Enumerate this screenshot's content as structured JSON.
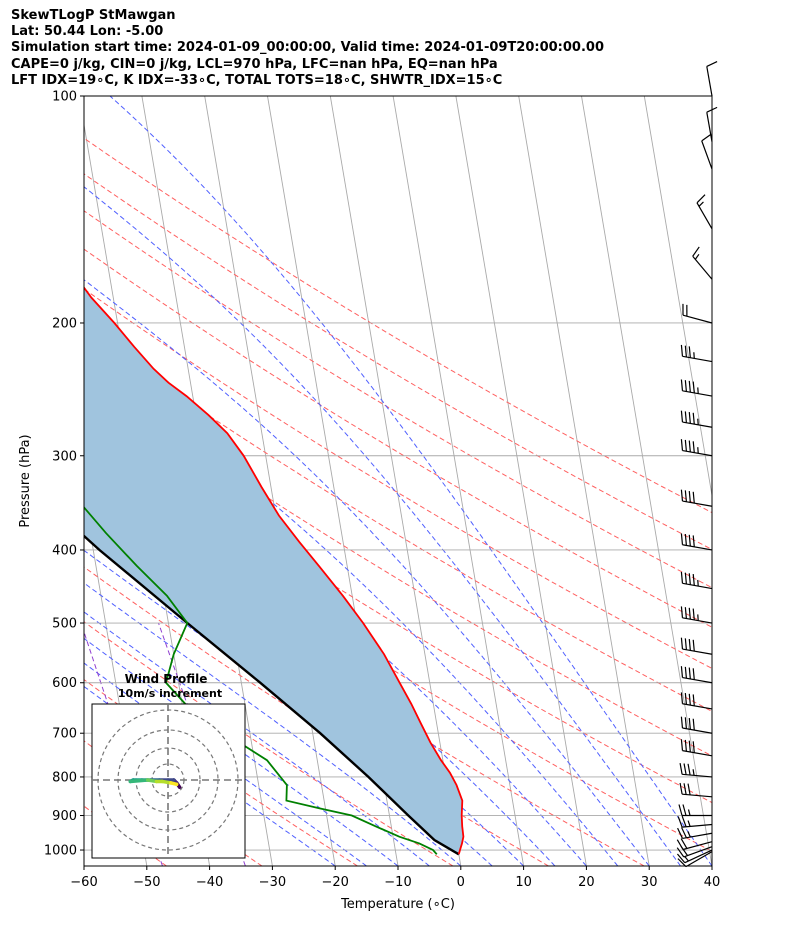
{
  "header": {
    "line1": "SkewTLogP StMawgan",
    "line2": "Lat: 50.44   Lon: -5.00",
    "line3": "Simulation start time: 2024-01-09_00:00:00, Valid time: 2024-01-09T20:00:00.00",
    "line4": "CAPE=0 j/kg, CIN=0 j/kg, LCL=970 hPa, LFC=nan hPa, EQ=nan hPa",
    "line5": "LFT IDX=19∘C, K IDX=-33∘C, TOTAL TOTS=18∘C, SHWTR_IDX=15∘C"
  },
  "axes": {
    "xlabel": "Temperature (∘C)",
    "ylabel": "Pressure (hPa)",
    "x_ticks": [
      "−60",
      "−50",
      "−40",
      "−30",
      "−20",
      "−10",
      "0",
      "10",
      "20",
      "30",
      "40"
    ],
    "y_ticks": [
      "100",
      "200",
      "300",
      "400",
      "500",
      "600",
      "700",
      "800",
      "900",
      "1000"
    ]
  },
  "inset": {
    "title_line1": "Wind Profile",
    "title_line2": "10m/s increment"
  },
  "colors": {
    "temperature": "#ff0000",
    "dewpoint": "#008000",
    "parcel": "#000000",
    "cape_fill": "#a0c4de",
    "dry_adiabat": "#ff6060",
    "moist_adiabat": "#5060ff",
    "mixing_ratio": "#9040d0",
    "isotherm": "#aaaaaa"
  },
  "chart_data": {
    "type": "skewt",
    "x_range": [
      -60,
      40
    ],
    "p_range": [
      1050,
      100
    ],
    "temperature": [
      [
        1013,
        0
      ],
      [
        1000,
        0.3
      ],
      [
        980,
        0.8
      ],
      [
        960,
        1.2
      ],
      [
        930,
        1.3
      ],
      [
        900,
        1.5
      ],
      [
        860,
        2.0
      ],
      [
        820,
        1.5
      ],
      [
        790,
        0.8
      ],
      [
        760,
        -0.3
      ],
      [
        720,
        -1.5
      ],
      [
        680,
        -2.5
      ],
      [
        640,
        -3.5
      ],
      [
        600,
        -4.8
      ],
      [
        550,
        -6.5
      ],
      [
        500,
        -9.0
      ],
      [
        460,
        -11.5
      ],
      [
        420,
        -14.5
      ],
      [
        390,
        -17.0
      ],
      [
        360,
        -19.5
      ],
      [
        330,
        -21.5
      ],
      [
        300,
        -23.5
      ],
      [
        280,
        -25.5
      ],
      [
        265,
        -28
      ],
      [
        250,
        -31
      ],
      [
        240,
        -33.5
      ],
      [
        230,
        -35.5
      ],
      [
        215,
        -38.0
      ],
      [
        200,
        -40.5
      ],
      [
        185,
        -43.5
      ],
      [
        170,
        -46.0
      ],
      [
        160,
        -47.5
      ],
      [
        150,
        -49.5
      ],
      [
        140,
        -52
      ],
      [
        130,
        -54
      ],
      [
        120,
        -56
      ],
      [
        110,
        -58
      ],
      [
        100,
        -61
      ]
    ],
    "dewpoint": [
      [
        1013,
        -3.5
      ],
      [
        1000,
        -4.0
      ],
      [
        980,
        -6.0
      ],
      [
        960,
        -9.0
      ],
      [
        930,
        -12.5
      ],
      [
        900,
        -16.0
      ],
      [
        880,
        -21.0
      ],
      [
        860,
        -26.0
      ],
      [
        820,
        -25.5
      ],
      [
        760,
        -28.0
      ],
      [
        700,
        -34.0
      ],
      [
        640,
        -39.5
      ],
      [
        600,
        -42.0
      ],
      [
        550,
        -40.0
      ],
      [
        500,
        -37.0
      ],
      [
        460,
        -39.5
      ],
      [
        420,
        -43.5
      ],
      [
        380,
        -47.5
      ],
      [
        340,
        -51.5
      ],
      [
        300,
        -54.5
      ],
      [
        270,
        -57.0
      ],
      [
        245,
        -59.5
      ],
      [
        225,
        -63.0
      ],
      [
        210,
        -64.5
      ],
      [
        200,
        -65.0
      ],
      [
        185,
        -66.0
      ],
      [
        165,
        -70.0
      ],
      [
        150,
        -73.0
      ],
      [
        135,
        -76.0
      ],
      [
        115,
        -80.5
      ],
      [
        100,
        -85.0
      ]
    ],
    "parcel": [
      [
        1013,
        0
      ],
      [
        970,
        -3.5
      ],
      [
        900,
        -7.0
      ],
      [
        800,
        -12.3
      ],
      [
        700,
        -18.8
      ],
      [
        600,
        -27.0
      ],
      [
        500,
        -37.0
      ],
      [
        400,
        -49.0
      ],
      [
        300,
        -63.0
      ],
      [
        200,
        -81.0
      ],
      [
        100,
        -110.0
      ]
    ],
    "hodograph": {
      "title": "Wind Profile",
      "ring_increment_ms": 10,
      "points_uv": [
        [
          8,
          -5
        ],
        [
          6,
          -2
        ],
        [
          4,
          0
        ],
        [
          0,
          0
        ],
        [
          -6,
          0
        ],
        [
          -12,
          0
        ],
        [
          -18,
          0
        ],
        [
          -24,
          0
        ],
        [
          -26,
          -1
        ],
        [
          -14,
          0
        ],
        [
          -8,
          -1
        ],
        [
          -4,
          -1
        ],
        [
          2,
          -2
        ],
        [
          6,
          -3
        ]
      ]
    },
    "wind_barbs": [
      {
        "p": 1005,
        "dir": 240,
        "kt": 10
      },
      {
        "p": 1000,
        "dir": 245,
        "kt": 15
      },
      {
        "p": 990,
        "dir": 250,
        "kt": 20
      },
      {
        "p": 975,
        "dir": 255,
        "kt": 20
      },
      {
        "p": 950,
        "dir": 260,
        "kt": 25
      },
      {
        "p": 925,
        "dir": 265,
        "kt": 25
      },
      {
        "p": 900,
        "dir": 270,
        "kt": 25
      },
      {
        "p": 850,
        "dir": 275,
        "kt": 30
      },
      {
        "p": 800,
        "dir": 275,
        "kt": 35
      },
      {
        "p": 750,
        "dir": 280,
        "kt": 40
      },
      {
        "p": 700,
        "dir": 280,
        "kt": 40
      },
      {
        "p": 650,
        "dir": 280,
        "kt": 40
      },
      {
        "p": 600,
        "dir": 280,
        "kt": 40
      },
      {
        "p": 550,
        "dir": 280,
        "kt": 40
      },
      {
        "p": 500,
        "dir": 280,
        "kt": 45
      },
      {
        "p": 450,
        "dir": 280,
        "kt": 45
      },
      {
        "p": 400,
        "dir": 280,
        "kt": 40
      },
      {
        "p": 350,
        "dir": 280,
        "kt": 40
      },
      {
        "p": 300,
        "dir": 280,
        "kt": 45
      },
      {
        "p": 275,
        "dir": 280,
        "kt": 45
      },
      {
        "p": 250,
        "dir": 280,
        "kt": 45
      },
      {
        "p": 225,
        "dir": 280,
        "kt": 35
      },
      {
        "p": 200,
        "dir": 285,
        "kt": 20
      },
      {
        "p": 175,
        "dir": 320,
        "kt": 15
      },
      {
        "p": 150,
        "dir": 330,
        "kt": 15
      },
      {
        "p": 125,
        "dir": 340,
        "kt": 10
      },
      {
        "p": 115,
        "dir": 350,
        "kt": 10
      },
      {
        "p": 100,
        "dir": 350,
        "kt": 10
      }
    ]
  }
}
